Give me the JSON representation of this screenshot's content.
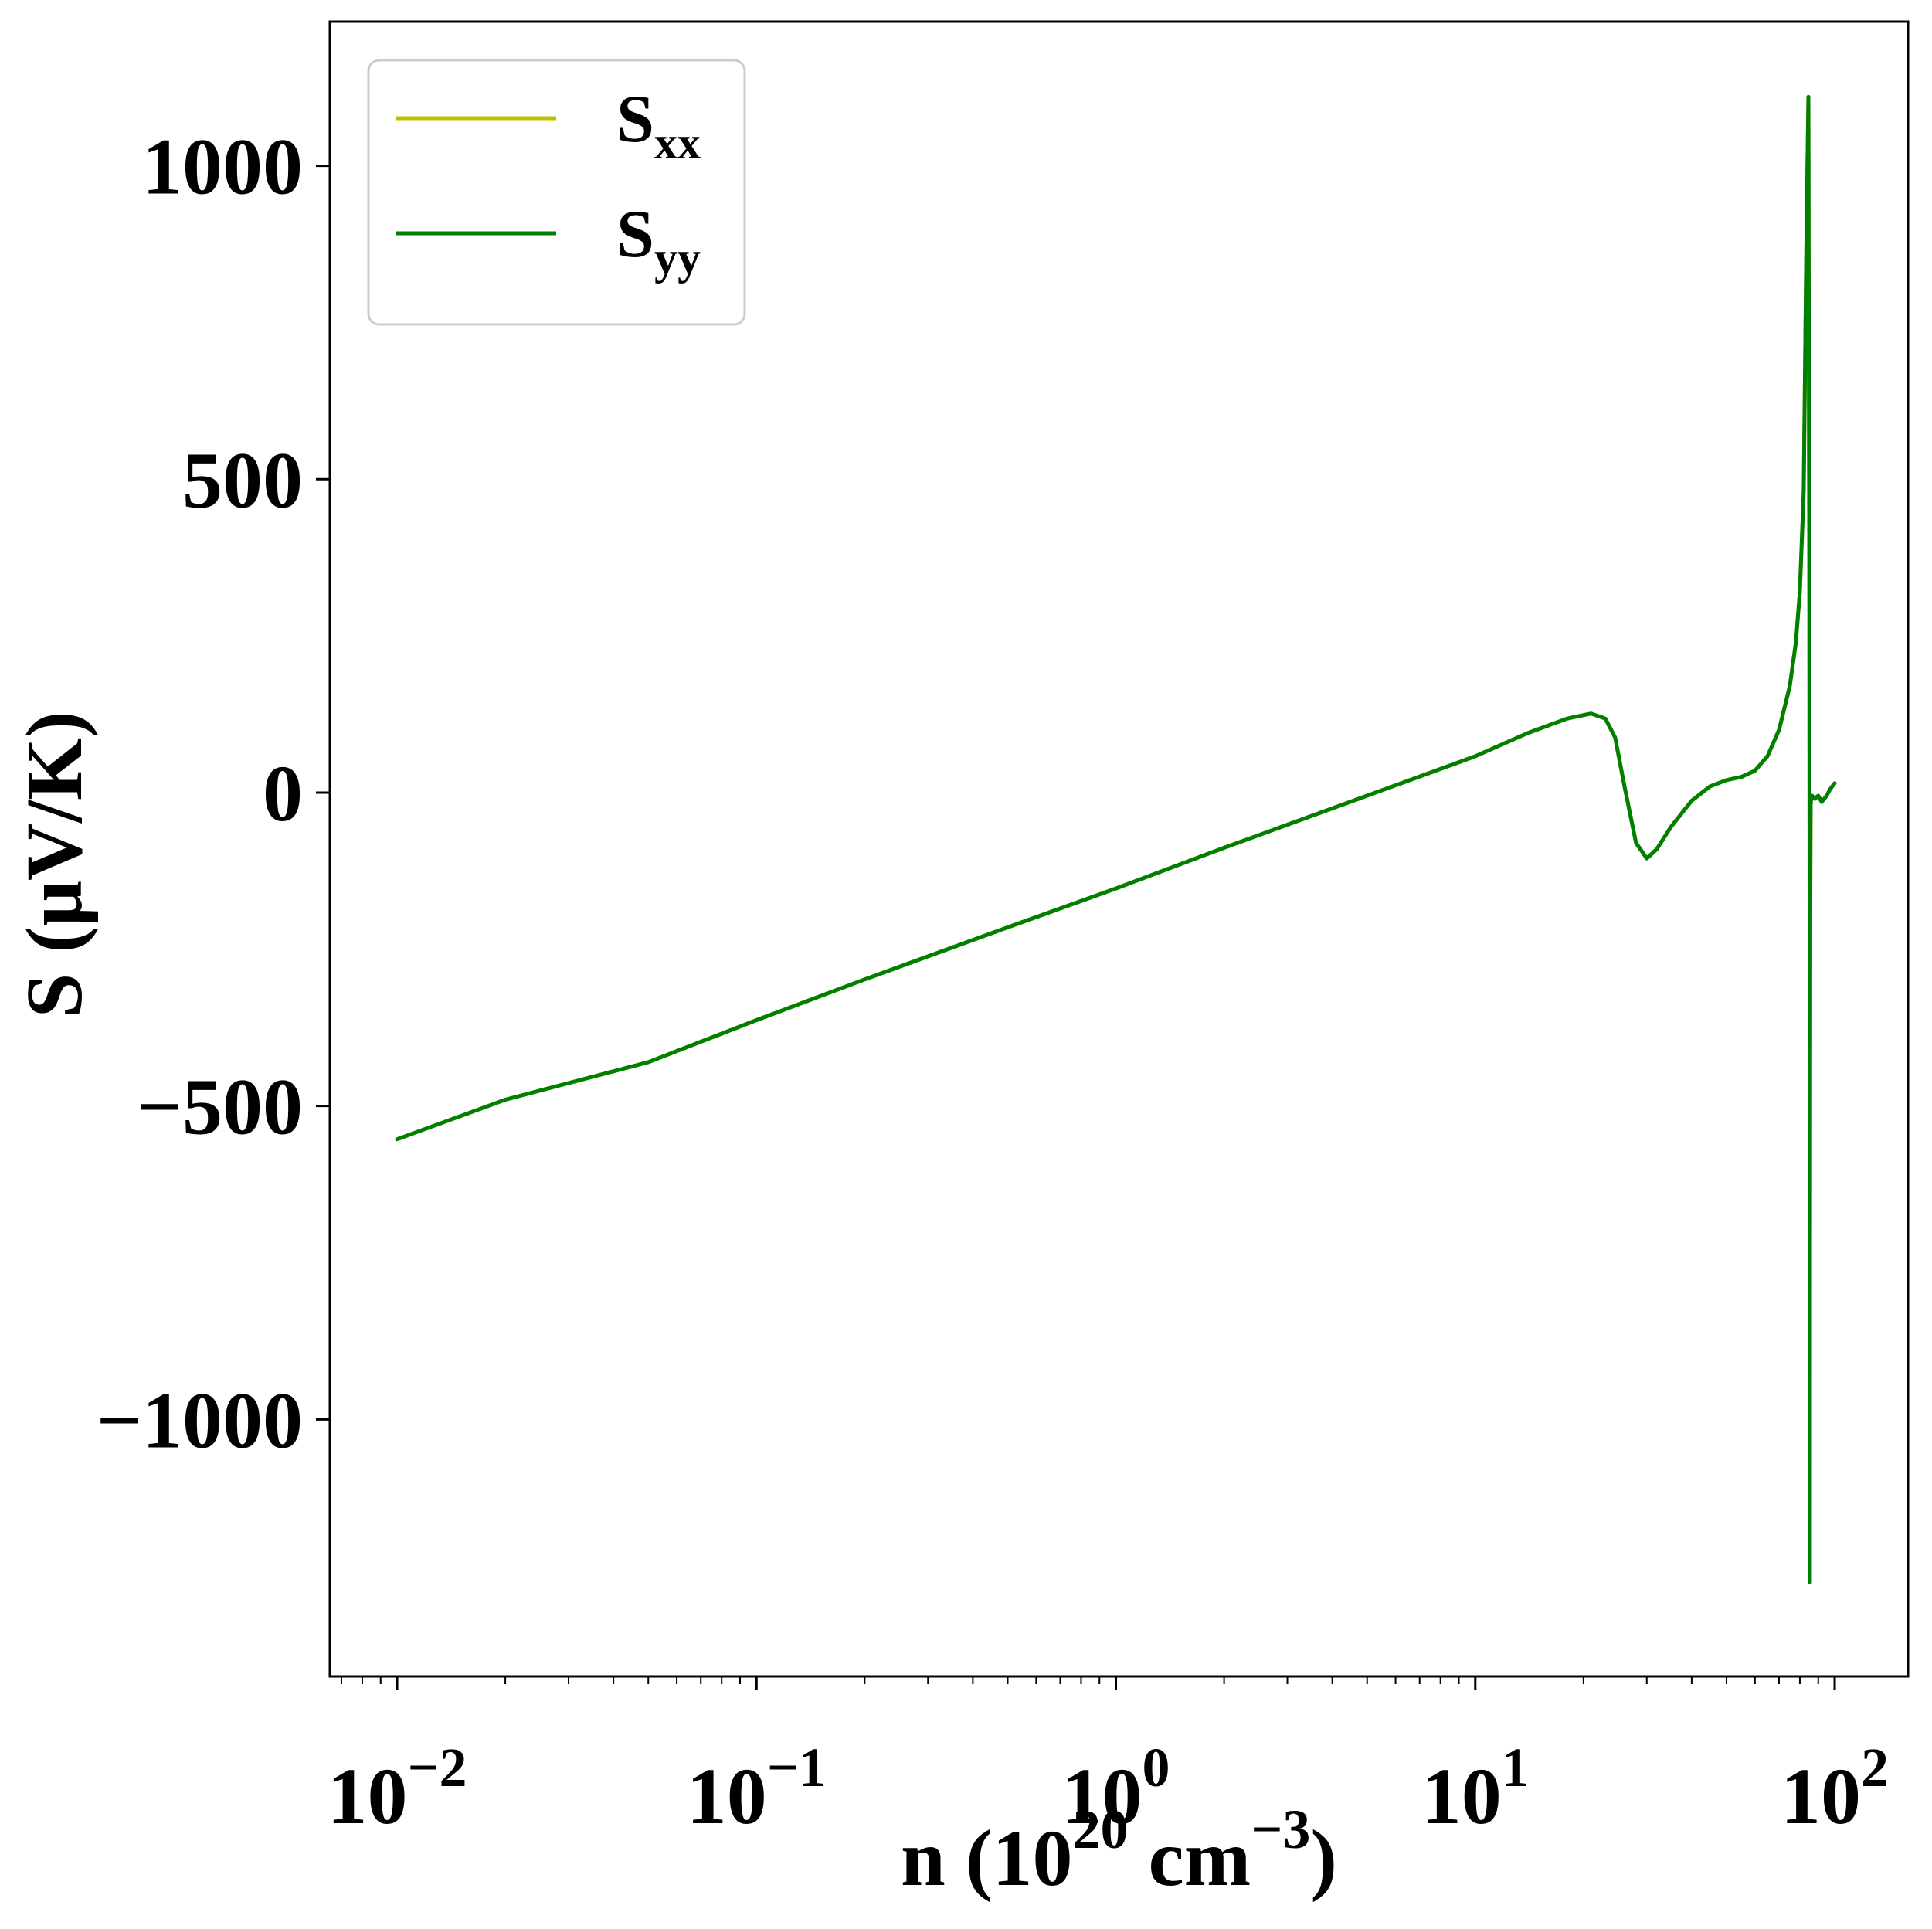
{
  "chart_data": {
    "type": "line",
    "xlabel": {
      "prefix": "n (10",
      "exponent": "20",
      "middle": " cm",
      "exponent2": "−3",
      "suffix": ")"
    },
    "ylabel": "S (μV/K)",
    "xscale": "log",
    "xlim": [
      0.0065,
      160
    ],
    "ylim": [
      -1410,
      1230
    ],
    "grid": false,
    "legend_position": "top-left",
    "x_ticks": [
      {
        "value": 0.01,
        "base": "10",
        "exp": "−2"
      },
      {
        "value": 0.1,
        "base": "10",
        "exp": "−1"
      },
      {
        "value": 1,
        "base": "10",
        "exp": "0"
      },
      {
        "value": 10,
        "base": "10",
        "exp": "1"
      },
      {
        "value": 100,
        "base": "10",
        "exp": "2"
      }
    ],
    "y_ticks": [
      {
        "value": 1000,
        "label": "1000"
      },
      {
        "value": 500,
        "label": "500"
      },
      {
        "value": 0,
        "label": "0"
      },
      {
        "value": -500,
        "label": "−500"
      },
      {
        "value": -1000,
        "label": "−1000"
      }
    ],
    "series": [
      {
        "name": "S",
        "subscript": "xx",
        "color": "#bfbf00",
        "x": [
          0.01,
          0.02,
          0.05,
          0.1,
          0.2,
          0.5,
          1,
          2,
          5,
          10,
          14,
          18,
          21,
          23,
          24.5,
          26,
          28,
          30,
          32,
          35,
          40,
          45,
          50,
          55,
          60,
          65,
          70,
          75,
          78,
          80,
          82,
          83.5,
          84.5,
          85,
          85.2,
          85.3,
          85.4,
          85.5,
          85.7,
          86,
          86.5,
          88,
          90,
          92,
          95,
          97,
          100
        ],
        "y": [
          -553,
          -490,
          -430,
          -363,
          -298,
          -215,
          -153,
          -88,
          -5,
          58,
          95,
          118,
          126,
          118,
          88,
          10,
          -80,
          -105,
          -90,
          -55,
          -13,
          10,
          20,
          25,
          35,
          58,
          100,
          170,
          240,
          320,
          480,
          900,
          1110,
          300,
          -500,
          -1260,
          -600,
          -200,
          -20,
          -8,
          -5,
          -10,
          -5,
          -15,
          -5,
          5,
          15
        ]
      },
      {
        "name": "S",
        "subscript": "yy",
        "color": "#007f00",
        "x": [
          0.01,
          0.02,
          0.05,
          0.1,
          0.2,
          0.5,
          1,
          2,
          5,
          10,
          14,
          18,
          21,
          23,
          24.5,
          26,
          28,
          30,
          32,
          35,
          40,
          45,
          50,
          55,
          60,
          65,
          70,
          75,
          78,
          80,
          82,
          83.5,
          84.5,
          85,
          85.2,
          85.3,
          85.4,
          85.5,
          85.7,
          86,
          86.5,
          88,
          90,
          92,
          95,
          97,
          100
        ],
        "y": [
          -553,
          -490,
          -430,
          -363,
          -298,
          -215,
          -153,
          -88,
          -5,
          58,
          95,
          118,
          126,
          118,
          88,
          10,
          -80,
          -105,
          -90,
          -55,
          -13,
          10,
          20,
          25,
          35,
          58,
          100,
          170,
          240,
          320,
          480,
          900,
          1110,
          300,
          -500,
          -1260,
          -600,
          -200,
          -20,
          -8,
          -5,
          -10,
          -5,
          -15,
          -5,
          5,
          15
        ]
      }
    ]
  }
}
